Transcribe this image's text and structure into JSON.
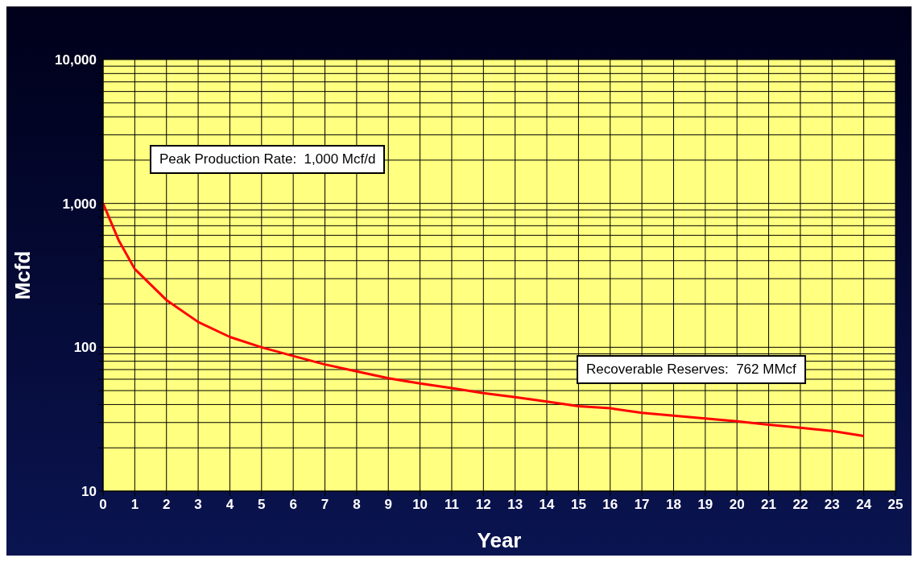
{
  "chart_data": {
    "type": "line",
    "xlabel": "Year",
    "ylabel": "Mcfd",
    "log": "y",
    "grid": true,
    "marker": "none",
    "legend": false,
    "annotations": [
      "Peak Production Rate:  1,000 Mcf/d",
      "Recoverable Reserves:  762 MMcf"
    ],
    "x": [
      0,
      0.5,
      1,
      2,
      3,
      4,
      5,
      6,
      7,
      8,
      9,
      10,
      11,
      12,
      13,
      14,
      15,
      16,
      17,
      18,
      19,
      20,
      21,
      22,
      23,
      24
    ],
    "series": [
      {
        "color": "#ff0000",
        "values": [
          1000,
          550,
          350,
          213,
          150,
          118,
          100,
          87,
          76,
          68,
          61,
          56,
          52,
          48,
          45,
          42,
          39,
          37.7,
          35,
          33.5,
          32,
          30.6,
          29,
          27.6,
          26.2,
          24.2
        ]
      }
    ],
    "xlim": [
      0,
      25
    ],
    "xticks": [
      0,
      1,
      2,
      3,
      4,
      5,
      6,
      7,
      8,
      9,
      10,
      11,
      12,
      13,
      14,
      15,
      16,
      17,
      18,
      19,
      20,
      21,
      22,
      23,
      24,
      25
    ],
    "ylim": [
      10,
      10000
    ],
    "yticks": [
      {
        "value": 10,
        "label": "10"
      },
      {
        "value": 20,
        "label": null
      },
      {
        "value": 30,
        "label": null
      },
      {
        "value": 40,
        "label": null
      },
      {
        "value": 50,
        "label": null
      },
      {
        "value": 60,
        "label": null
      },
      {
        "value": 70,
        "label": null
      },
      {
        "value": 80,
        "label": null
      },
      {
        "value": 90,
        "label": null
      },
      {
        "value": 100,
        "label": "100"
      },
      {
        "value": 200,
        "label": null
      },
      {
        "value": 300,
        "label": null
      },
      {
        "value": 400,
        "label": null
      },
      {
        "value": 500,
        "label": null
      },
      {
        "value": 600,
        "label": null
      },
      {
        "value": 700,
        "label": null
      },
      {
        "value": 800,
        "label": null
      },
      {
        "value": 900,
        "label": null
      },
      {
        "value": 1000,
        "label": "1,000"
      },
      {
        "value": 2000,
        "label": null
      },
      {
        "value": 3000,
        "label": null
      },
      {
        "value": 4000,
        "label": null
      },
      {
        "value": 5000,
        "label": null
      },
      {
        "value": 6000,
        "label": null
      },
      {
        "value": 7000,
        "label": null
      },
      {
        "value": 8000,
        "label": null
      },
      {
        "value": 9000,
        "label": null
      },
      {
        "value": 10000,
        "label": "10,000"
      }
    ]
  }
}
